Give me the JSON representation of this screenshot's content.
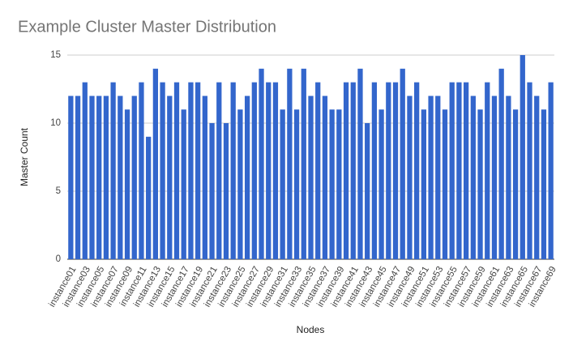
{
  "chart_data": {
    "type": "bar",
    "title": "Example Cluster Master Distribution",
    "x_label": "Nodes",
    "y_label": "Master Count",
    "categories": [
      "instance01",
      null,
      "instance03",
      null,
      "instance05",
      null,
      "instance07",
      null,
      "instance09",
      null,
      "instance11",
      null,
      "instance13",
      null,
      "instance15",
      null,
      "instance17",
      null,
      "instance19",
      null,
      "instance21",
      null,
      "instance23",
      null,
      "instance25",
      null,
      "instance27",
      null,
      "instance29",
      null,
      "instance31",
      null,
      "instance33",
      null,
      "instance35",
      null,
      "instance37",
      null,
      "instance39",
      null,
      "instance41",
      null,
      "instance43",
      null,
      "instance45",
      null,
      "instance47",
      null,
      "instance49",
      null,
      "instance51",
      null,
      "instance53",
      null,
      "instance55",
      null,
      "instance57",
      null,
      "instance59",
      null,
      "instance61",
      null,
      "instance63",
      null,
      "instance65",
      null,
      "instance67",
      null,
      "instance69"
    ],
    "values": [
      12,
      12,
      13,
      12,
      12,
      12,
      13,
      12,
      11,
      12,
      13,
      9,
      14,
      13,
      12,
      13,
      11,
      13,
      13,
      12,
      10,
      13,
      10,
      13,
      11,
      12,
      13,
      14,
      13,
      13,
      11,
      14,
      11,
      14,
      12,
      13,
      12,
      11,
      11,
      13,
      13,
      14,
      10,
      13,
      11,
      13,
      13,
      14,
      12,
      13,
      11,
      12,
      12,
      11,
      13,
      13,
      13,
      12,
      11,
      13,
      12,
      14,
      12,
      11,
      15,
      13,
      12,
      11,
      13
    ],
    "color": "#3366cc",
    "ylim": [
      0,
      15
    ],
    "yticks": [
      0,
      5,
      10,
      15
    ],
    "grid": true
  }
}
